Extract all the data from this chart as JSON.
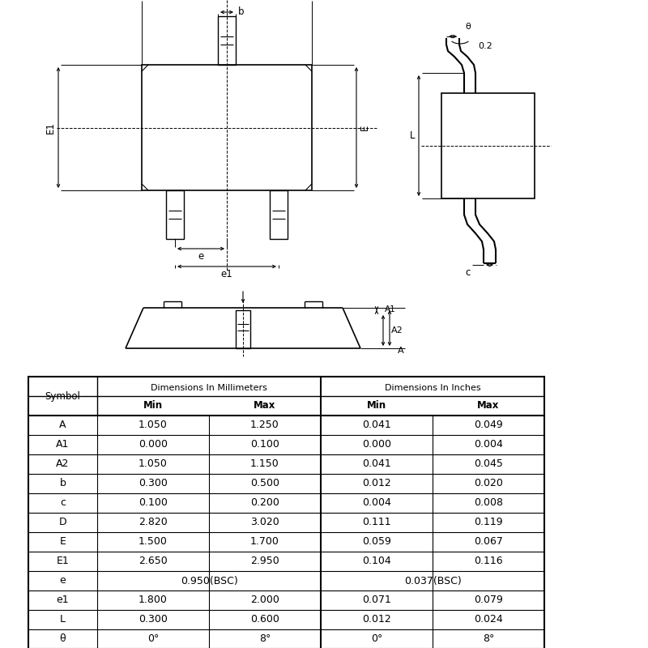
{
  "table_data": [
    [
      "A",
      "1.050",
      "1.250",
      "0.041",
      "0.049"
    ],
    [
      "A1",
      "0.000",
      "0.100",
      "0.000",
      "0.004"
    ],
    [
      "A2",
      "1.050",
      "1.150",
      "0.041",
      "0.045"
    ],
    [
      "b",
      "0.300",
      "0.500",
      "0.012",
      "0.020"
    ],
    [
      "c",
      "0.100",
      "0.200",
      "0.004",
      "0.008"
    ],
    [
      "D",
      "2.820",
      "3.020",
      "0.111",
      "0.119"
    ],
    [
      "E",
      "1.500",
      "1.700",
      "0.059",
      "0.067"
    ],
    [
      "E1",
      "2.650",
      "2.950",
      "0.104",
      "0.116"
    ],
    [
      "e",
      "0.950(BSC)",
      "",
      "0.037(BSC)",
      ""
    ],
    [
      "e1",
      "1.800",
      "2.000",
      "0.071",
      "0.079"
    ],
    [
      "L",
      "0.300",
      "0.600",
      "0.012",
      "0.024"
    ],
    [
      "θ",
      "0°",
      "8°",
      "0°",
      "8°"
    ]
  ]
}
